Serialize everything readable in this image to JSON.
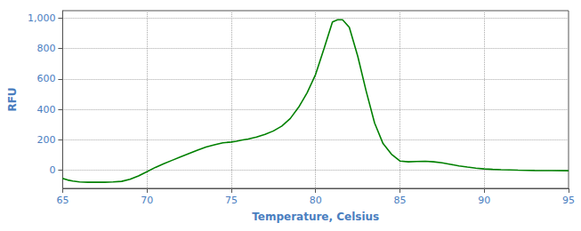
{
  "chart_data": {
    "type": "line",
    "xlabel": "Temperature, Celsius",
    "ylabel": "RFU",
    "color": "#008000",
    "x": [
      65.0,
      65.3,
      65.6,
      66.0,
      66.5,
      67.0,
      67.5,
      68.0,
      68.5,
      69.0,
      69.5,
      70.0,
      70.5,
      71.0,
      71.5,
      72.0,
      72.5,
      73.0,
      73.5,
      74.0,
      74.5,
      75.0,
      75.3,
      75.6,
      76.0,
      76.5,
      77.0,
      77.5,
      78.0,
      78.5,
      79.0,
      79.5,
      80.0,
      80.5,
      81.0,
      81.3,
      81.6,
      82.0,
      82.5,
      83.0,
      83.5,
      84.0,
      84.5,
      85.0,
      85.5,
      86.0,
      86.5,
      87.0,
      87.5,
      88.0,
      88.5,
      89.0,
      89.5,
      90.0,
      90.5,
      91.0,
      92.0,
      93.0,
      94.0,
      95.0
    ],
    "values": [
      -55,
      -65,
      -72,
      -78,
      -80,
      -80,
      -80,
      -78,
      -74,
      -60,
      -38,
      -10,
      18,
      42,
      65,
      88,
      110,
      132,
      152,
      167,
      180,
      185,
      190,
      197,
      205,
      218,
      235,
      258,
      290,
      340,
      415,
      510,
      630,
      800,
      975,
      990,
      990,
      940,
      750,
      520,
      310,
      175,
      105,
      60,
      55,
      57,
      58,
      55,
      48,
      38,
      28,
      20,
      13,
      8,
      5,
      3,
      0,
      -2,
      -3,
      -4
    ],
    "xlim": [
      65,
      95
    ],
    "ylim": [
      -120,
      1050
    ],
    "xticks": [
      65,
      70,
      75,
      80,
      85,
      90,
      95
    ],
    "yticks": [
      0,
      200,
      400,
      600,
      800,
      1000
    ],
    "grid": true
  }
}
